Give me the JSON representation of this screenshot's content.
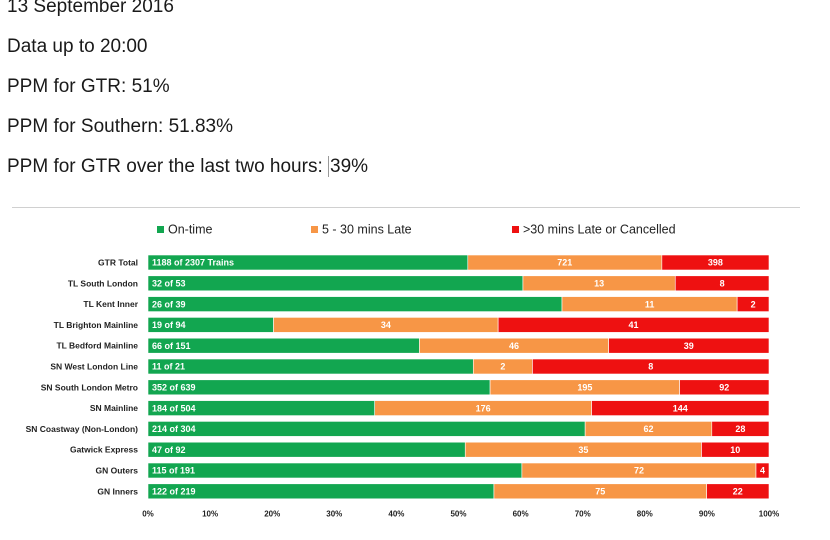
{
  "header": {
    "date": "13 September 2016",
    "data_up_to": "Data up to 20:00",
    "ppm_gtr": "PPM for GTR: 51%",
    "ppm_southern": "PPM for Southern: 51.83%",
    "ppm_two_hours_prefix": "PPM for GTR over the last two hours: ",
    "ppm_two_hours_value": "39%"
  },
  "chart_data": {
    "type": "bar",
    "orientation": "horizontal",
    "stacked": "percent",
    "categories": [
      "GTR Total",
      "TL South London",
      "TL Kent Inner",
      "TL Brighton Mainline",
      "TL Bedford Mainline",
      "SN West London Line",
      "SN South London Metro",
      "SN Mainline",
      "SN Coastway (Non-London)",
      "Gatwick Express",
      "GN Outers",
      "GN Inners"
    ],
    "series": [
      {
        "name": "On-time",
        "color": "#12a650",
        "values": [
          1188,
          32,
          26,
          19,
          66,
          11,
          352,
          184,
          214,
          47,
          115,
          122
        ],
        "labels": [
          "1188 of 2307 Trains",
          "32 of 53",
          "26 of 39",
          "19 of 94",
          "66 of 151",
          "11 of 21",
          "352 of 639",
          "184 of 504",
          "214 of 304",
          "47 of 92",
          "115 of 191",
          "122 of 219"
        ]
      },
      {
        "name": "5 - 30 mins Late",
        "color": "#f79646",
        "values": [
          721,
          13,
          11,
          34,
          46,
          2,
          195,
          176,
          62,
          35,
          72,
          75
        ],
        "labels": [
          "721",
          "13",
          "11",
          "34",
          "46",
          "2",
          "195",
          "176",
          "62",
          "35",
          "72",
          "75"
        ]
      },
      {
        "name": ">30 mins Late or Cancelled",
        "color": "#ee1111",
        "values": [
          398,
          8,
          2,
          41,
          39,
          8,
          92,
          144,
          28,
          10,
          4,
          22
        ],
        "labels": [
          "398",
          "8",
          "2",
          "41",
          "39",
          "8",
          "92",
          "144",
          "28",
          "10",
          "4",
          "22"
        ]
      }
    ],
    "xticks": [
      "0%",
      "10%",
      "20%",
      "30%",
      "40%",
      "50%",
      "60%",
      "70%",
      "80%",
      "90%",
      "100%"
    ],
    "xlim": [
      0,
      100
    ],
    "legend": "top",
    "grid": false
  }
}
